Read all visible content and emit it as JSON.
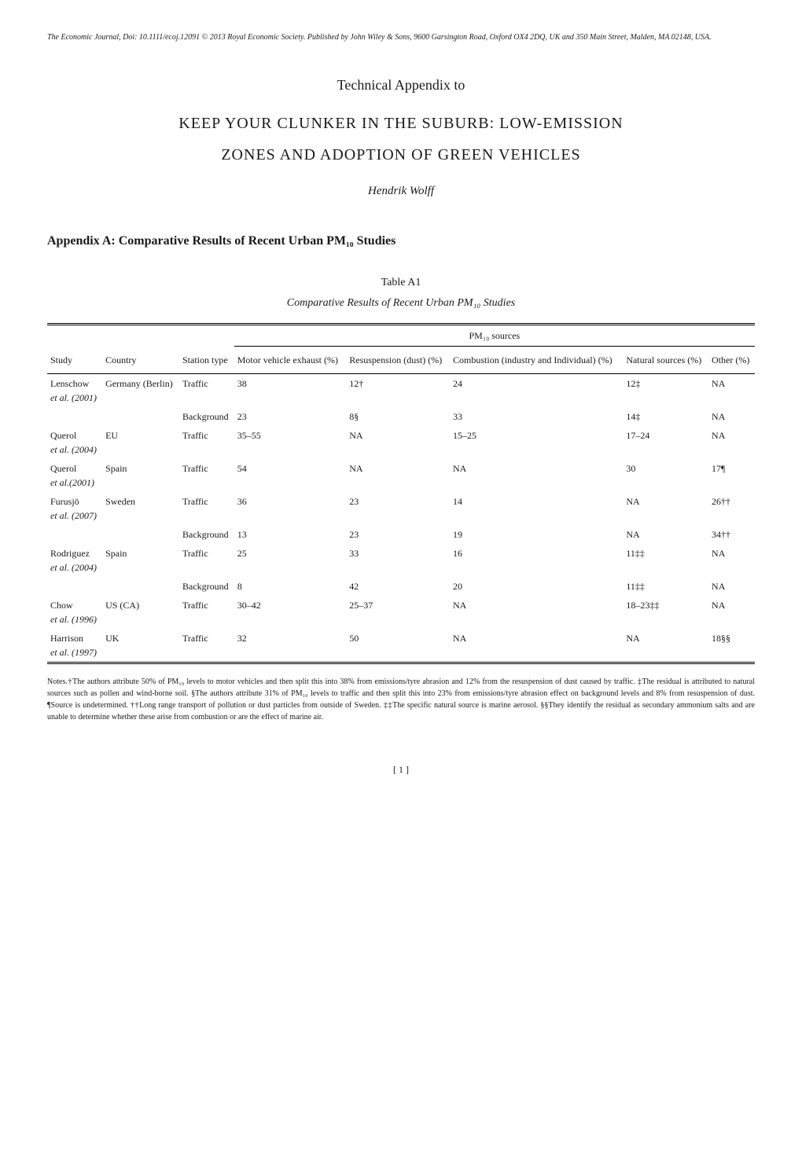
{
  "journal_info": "The Economic Journal, Doi: 10.1111/ecoj.12091 © 2013 Royal Economic Society. Published by John Wiley & Sons, 9600 Garsington Road, Oxford OX4 2DQ, UK and 350 Main Street, Malden, MA 02148, USA.",
  "appendix_header": "Technical Appendix to",
  "main_title": "KEEP YOUR CLUNKER IN THE SUBURB: LOW-EMISSION",
  "subtitle": "ZONES AND ADOPTION OF GREEN VEHICLES",
  "author": "Hendrik Wolff",
  "section_header": "Appendix A: Comparative Results of Recent Urban PM₁₀ Studies",
  "table": {
    "caption": "Table A1",
    "title": "Comparative Results of Recent Urban PM₁₀ Studies",
    "group_header": "PM₁₀ sources",
    "columns": {
      "study": "Study",
      "country": "Country",
      "station_type": "Station type",
      "motor": "Motor vehicle exhaust (%)",
      "resuspension": "Resuspension (dust) (%)",
      "combustion": "Combustion (industry and Individual) (%)",
      "natural": "Natural sources (%)",
      "other": "Other (%)"
    },
    "rows": [
      {
        "study_auth": "Lenschow",
        "study_et": "et al. (2001)",
        "country": "Germany (Berlin)",
        "station": "Traffic",
        "motor": "38",
        "resusp": "12†",
        "comb": "24",
        "natural": "12‡",
        "other": "NA"
      },
      {
        "study_auth": "",
        "study_et": "",
        "country": "",
        "station": "Background",
        "motor": "23",
        "resusp": "8§",
        "comb": "33",
        "natural": "14‡",
        "other": "NA"
      },
      {
        "study_auth": "Querol",
        "study_et": "et al. (2004)",
        "country": "EU",
        "station": "Traffic",
        "motor": "35–55",
        "resusp": "NA",
        "comb": "15–25",
        "natural": "17–24",
        "other": "NA"
      },
      {
        "study_auth": "Querol",
        "study_et": "et al.(2001)",
        "country": "Spain",
        "station": "Traffic",
        "motor": "54",
        "resusp": "NA",
        "comb": "NA",
        "natural": "30",
        "other": "17¶"
      },
      {
        "study_auth": "Furusjö",
        "study_et": "et al. (2007)",
        "country": "Sweden",
        "station": "Traffic",
        "motor": "36",
        "resusp": "23",
        "comb": "14",
        "natural": "NA",
        "other": "26††"
      },
      {
        "study_auth": "",
        "study_et": "",
        "country": "",
        "station": "Background",
        "motor": "13",
        "resusp": "23",
        "comb": "19",
        "natural": "NA",
        "other": "34††"
      },
      {
        "study_auth": "Rodriguez",
        "study_et": "et al. (2004)",
        "country": "Spain",
        "station": "Traffic",
        "motor": "25",
        "resusp": "33",
        "comb": "16",
        "natural": "11‡‡",
        "other": "NA"
      },
      {
        "study_auth": "",
        "study_et": "",
        "country": "",
        "station": "Background",
        "motor": "8",
        "resusp": "42",
        "comb": "20",
        "natural": "11‡‡",
        "other": "NA"
      },
      {
        "study_auth": "Chow",
        "study_et": "et al. (1996)",
        "country": "US (CA)",
        "station": "Traffic",
        "motor": "30–42",
        "resusp": "25–37",
        "comb": "NA",
        "natural": "18–23‡‡",
        "other": "NA"
      },
      {
        "study_auth": "Harrison",
        "study_et": "et al. (1997)",
        "country": "UK",
        "station": "Traffic",
        "motor": "32",
        "resusp": "50",
        "comb": "NA",
        "natural": "NA",
        "other": "18§§"
      }
    ]
  },
  "notes": "Notes.†The authors attribute 50% of PM₁₀ levels to motor vehicles and then split this into 38% from emissions/tyre abrasion and 12% from the resuspension of dust caused by traffic. ‡The residual is attributed to natural sources such as pollen and wind-borne soil. §The authors attribute 31% of PM₁₀ levels to traffic and then split this into 23% from emissions/tyre abrasion effect on background levels and 8% from resuspension of dust. ¶Source is undetermined. ††Long range transport of pollution or dust particles from outside of Sweden. ‡‡The specific natural source is marine aerosol. §§They identify the residual as secondary ammonium salts and are unable to determine whether these arise from combustion or are the effect of marine air.",
  "page_num": "[ 1 ]"
}
